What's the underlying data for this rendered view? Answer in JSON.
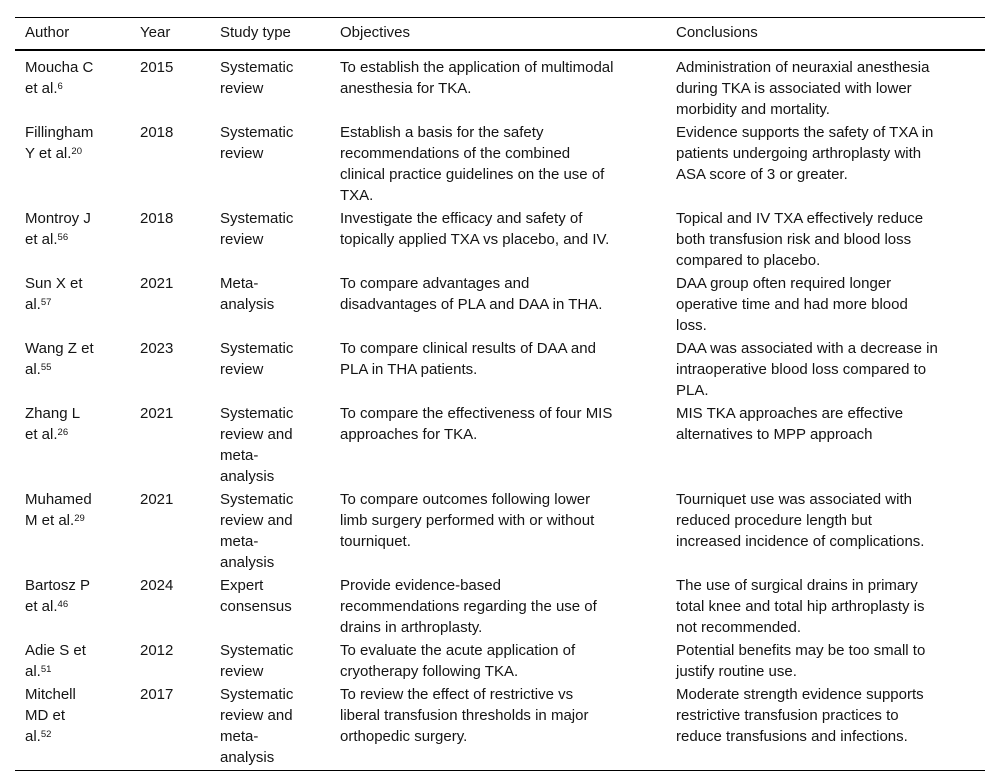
{
  "table": {
    "headers": [
      "Author",
      "Year",
      "Study type",
      "Objectives",
      "Conclusions"
    ],
    "rows": [
      {
        "author": "Moucha C et al.",
        "ref": "6",
        "year": "2015",
        "study_type": "Systematic review",
        "objectives": "To establish the application of multimodal anesthesia for TKA.",
        "conclusions": "Administration of neuraxial anesthesia during TKA is associated with lower morbidity and mortality."
      },
      {
        "author": "Fillingham Y et al.",
        "ref": "20",
        "year": "2018",
        "study_type": "Systematic review",
        "objectives": "Establish a basis for the safety recommendations of the combined clinical practice guidelines on the use of TXA.",
        "conclusions": "Evidence supports the safety of TXA in patients undergoing arthroplasty with ASA score of 3 or greater."
      },
      {
        "author": "Montroy J et al.",
        "ref": "56",
        "year": "2018",
        "study_type": "Systematic review",
        "objectives": "Investigate the efficacy and safety of topically applied TXA vs placebo, and IV.",
        "conclusions": "Topical and IV TXA effectively reduce both transfusion risk and blood loss compared to placebo."
      },
      {
        "author": "Sun X et al.",
        "ref": "57",
        "year": "2021",
        "study_type": "Meta-analysis",
        "objectives": "To compare advantages and disadvantages of PLA and DAA in THA.",
        "conclusions": "DAA group often required longer operative time and had more blood loss."
      },
      {
        "author": "Wang Z et al.",
        "ref": "55",
        "year": "2023",
        "study_type": "Systematic review",
        "objectives": "To compare clinical results of DAA and PLA in THA patients.",
        "conclusions": "DAA was associated with a decrease in intraoperative blood loss compared to PLA."
      },
      {
        "author": "Zhang L et al.",
        "ref": "26",
        "year": "2021",
        "study_type": "Systematic review and meta-analysis",
        "objectives": "To compare the effectiveness of four MIS approaches for TKA.",
        "conclusions": "MIS TKA approaches are effective alternatives to MPP approach"
      },
      {
        "author": "Muhamed M et al.",
        "ref": "29",
        "year": "2021",
        "study_type": "Systematic review and meta-analysis",
        "objectives": "To compare outcomes following lower limb surgery performed with or without tourniquet.",
        "conclusions": "Tourniquet use was associated with reduced procedure length but increased incidence of complications."
      },
      {
        "author": "Bartosz P et al.",
        "ref": "46",
        "year": "2024",
        "study_type": "Expert consensus",
        "objectives": "Provide evidence-based recommendations regarding the use of drains in arthroplasty.",
        "conclusions": "The use of surgical drains in primary total knee and total hip arthroplasty is not recommended."
      },
      {
        "author": "Adie S et al.",
        "ref": "51",
        "year": "2012",
        "study_type": "Systematic review",
        "objectives": "To evaluate the acute application of cryotherapy following TKA.",
        "conclusions": "Potential benefits may be too small to justify routine use."
      },
      {
        "author": "Mitchell MD et al.",
        "ref": "52",
        "year": "2017",
        "study_type": "Systematic review and meta-analysis",
        "objectives": "To review the effect of restrictive vs liberal transfusion thresholds in major orthopedic surgery.",
        "conclusions": "Moderate strength evidence supports restrictive transfusion practices to reduce transfusions and infections."
      }
    ]
  }
}
